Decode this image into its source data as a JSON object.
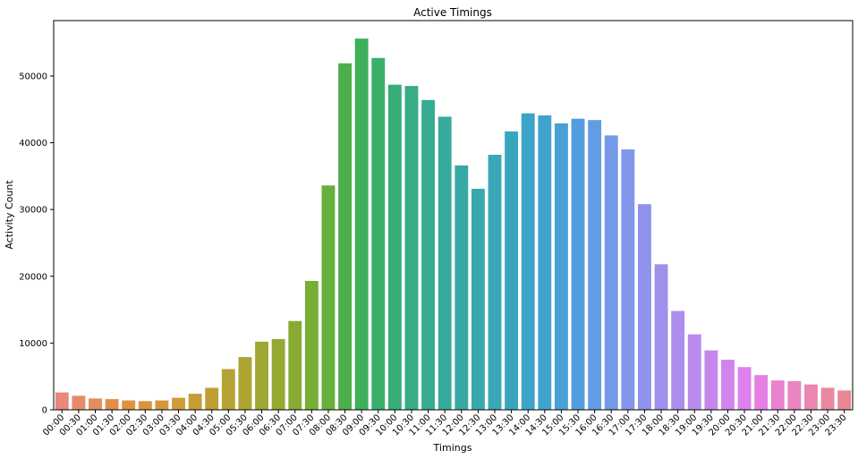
{
  "chart_data": {
    "type": "bar",
    "title": "Active Timings",
    "xlabel": "Timings",
    "ylabel": "Activity Count",
    "ylim": [
      0,
      58300
    ],
    "yticks": [
      0,
      10000,
      20000,
      30000,
      40000,
      50000
    ],
    "ytick_labels": [
      "0",
      "10000",
      "20000",
      "30000",
      "40000",
      "50000"
    ],
    "grid": false,
    "legend": "none",
    "categories": [
      "00:00",
      "00:30",
      "01:00",
      "01:30",
      "02:00",
      "02:30",
      "03:00",
      "03:30",
      "04:00",
      "04:30",
      "05:00",
      "05:30",
      "06:00",
      "06:30",
      "07:00",
      "07:30",
      "08:00",
      "08:30",
      "09:00",
      "09:30",
      "10:00",
      "10:30",
      "11:00",
      "11:30",
      "12:00",
      "12:30",
      "13:00",
      "13:30",
      "14:00",
      "14:30",
      "15:00",
      "15:30",
      "16:00",
      "16:30",
      "17:00",
      "17:30",
      "18:00",
      "18:30",
      "19:00",
      "19:30",
      "20:00",
      "20:30",
      "21:00",
      "21:30",
      "22:00",
      "22:30",
      "23:00",
      "23:30"
    ],
    "values": [
      2600,
      2100,
      1700,
      1600,
      1400,
      1300,
      1400,
      1800,
      2400,
      3300,
      6100,
      7900,
      10200,
      10600,
      13300,
      19300,
      33600,
      51900,
      55600,
      52700,
      48700,
      48500,
      46400,
      43900,
      36600,
      33100,
      38200,
      41700,
      44400,
      44100,
      42900,
      43600,
      43400,
      41100,
      39000,
      30800,
      21800,
      14800,
      11300,
      8900,
      7500,
      6400,
      5200,
      4400,
      4300,
      3800,
      3300,
      2900
    ],
    "colors": [
      "#e9877c",
      "#e68a6c",
      "#e38c5c",
      "#e08f4c",
      "#dc923f",
      "#d99539",
      "#d49837",
      "#cf9b36",
      "#c69e35",
      "#be9f34",
      "#b5a234",
      "#aca433",
      "#a0a633",
      "#95a832",
      "#88aa32",
      "#78ad36",
      "#66b03c",
      "#4daf4a",
      "#3cb05a",
      "#3aaf69",
      "#39ad78",
      "#38ac85",
      "#37ab91",
      "#37aa9b",
      "#37a9a4",
      "#38a8ad",
      "#39a7b6",
      "#3aa6be",
      "#3ca4c6",
      "#40a3cd",
      "#47a1d4",
      "#539ee0",
      "#639ce6",
      "#7399e8",
      "#8296ea",
      "#9093eb",
      "#9e90ec",
      "#ac8eec",
      "#b98bed",
      "#c687ed",
      "#d184ec",
      "#dc81eb",
      "#e47fe3",
      "#e883cf",
      "#e985bf",
      "#ea86af",
      "#ea87a0",
      "#e98893"
    ]
  }
}
